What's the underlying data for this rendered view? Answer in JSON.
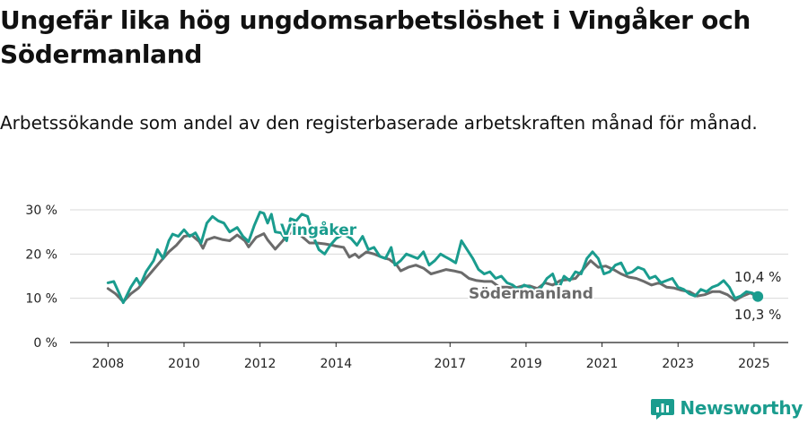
{
  "title": "Ungefär lika hög ungdomsarbetslöshet i Vingåker och Södermanland",
  "subtitle": "Arbetssökande som andel av den registerbaserade arbetskraften månad för månad.",
  "brand": {
    "name": "Newsworthy",
    "icon": "newsworthy-logo-icon",
    "color": "#1a9c8e"
  },
  "chart_data": {
    "type": "line",
    "xlim": [
      2007.0,
      2025.9
    ],
    "ylim": [
      0,
      30
    ],
    "y_ticks": [
      {
        "value": 0,
        "label": "0 %"
      },
      {
        "value": 10,
        "label": "10 %"
      },
      {
        "value": 20,
        "label": "20 %"
      },
      {
        "value": 30,
        "label": "30 %"
      }
    ],
    "x_ticks": [
      {
        "value": 2008,
        "label": "2008"
      },
      {
        "value": 2010,
        "label": "2010"
      },
      {
        "value": 2012,
        "label": "2012"
      },
      {
        "value": 2014,
        "label": "2014"
      },
      {
        "value": 2017,
        "label": "2017"
      },
      {
        "value": 2019,
        "label": "2019"
      },
      {
        "value": 2021,
        "label": "2021"
      },
      {
        "value": 2023,
        "label": "2023"
      },
      {
        "value": 2025,
        "label": "2025"
      }
    ],
    "grid": "horizontal",
    "series": [
      {
        "name": "Södermanland",
        "color": "#6b6b6b",
        "end_label": "10,3 %",
        "points": [
          [
            2008.0,
            12.2
          ],
          [
            2008.2,
            11.0
          ],
          [
            2008.4,
            9.2
          ],
          [
            2008.6,
            11.0
          ],
          [
            2008.8,
            12.3
          ],
          [
            2009.0,
            14.5
          ],
          [
            2009.2,
            16.5
          ],
          [
            2009.4,
            18.5
          ],
          [
            2009.6,
            20.5
          ],
          [
            2009.8,
            22.0
          ],
          [
            2010.0,
            24.0
          ],
          [
            2010.2,
            24.3
          ],
          [
            2010.4,
            22.8
          ],
          [
            2010.5,
            21.3
          ],
          [
            2010.6,
            23.2
          ],
          [
            2010.8,
            23.8
          ],
          [
            2011.0,
            23.3
          ],
          [
            2011.2,
            23.0
          ],
          [
            2011.4,
            24.3
          ],
          [
            2011.6,
            23.0
          ],
          [
            2011.7,
            21.6
          ],
          [
            2011.9,
            23.8
          ],
          [
            2012.1,
            24.6
          ],
          [
            2012.2,
            23.2
          ],
          [
            2012.4,
            21.1
          ],
          [
            2012.6,
            23.0
          ],
          [
            2012.7,
            24.3
          ],
          [
            2012.9,
            25.2
          ],
          [
            2013.1,
            24.0
          ],
          [
            2013.3,
            22.5
          ],
          [
            2013.5,
            22.5
          ],
          [
            2013.7,
            22.3
          ],
          [
            2013.9,
            22.0
          ],
          [
            2014.0,
            21.8
          ],
          [
            2014.2,
            21.5
          ],
          [
            2014.35,
            19.3
          ],
          [
            2014.5,
            20.0
          ],
          [
            2014.6,
            19.2
          ],
          [
            2014.8,
            20.5
          ],
          [
            2015.0,
            20.0
          ],
          [
            2015.2,
            19.3
          ],
          [
            2015.4,
            18.8
          ],
          [
            2015.6,
            17.5
          ],
          [
            2015.7,
            16.2
          ],
          [
            2015.9,
            17.0
          ],
          [
            2016.1,
            17.5
          ],
          [
            2016.3,
            16.8
          ],
          [
            2016.5,
            15.5
          ],
          [
            2016.7,
            16.0
          ],
          [
            2016.9,
            16.5
          ],
          [
            2017.1,
            16.2
          ],
          [
            2017.3,
            15.8
          ],
          [
            2017.5,
            14.5
          ],
          [
            2017.7,
            14.0
          ],
          [
            2017.9,
            13.8
          ],
          [
            2018.1,
            13.8
          ],
          [
            2018.3,
            12.5
          ],
          [
            2018.5,
            12.5
          ],
          [
            2018.7,
            12.3
          ],
          [
            2018.9,
            12.8
          ],
          [
            2019.1,
            12.8
          ],
          [
            2019.3,
            12.2
          ],
          [
            2019.5,
            13.5
          ],
          [
            2019.7,
            13.0
          ],
          [
            2019.9,
            14.0
          ],
          [
            2020.1,
            14.2
          ],
          [
            2020.3,
            14.5
          ],
          [
            2020.5,
            16.5
          ],
          [
            2020.7,
            18.5
          ],
          [
            2020.9,
            17.0
          ],
          [
            2021.1,
            17.3
          ],
          [
            2021.3,
            16.5
          ],
          [
            2021.5,
            15.5
          ],
          [
            2021.7,
            14.8
          ],
          [
            2021.9,
            14.5
          ],
          [
            2022.1,
            13.8
          ],
          [
            2022.3,
            13.0
          ],
          [
            2022.5,
            13.5
          ],
          [
            2022.7,
            12.5
          ],
          [
            2022.9,
            12.3
          ],
          [
            2023.1,
            11.8
          ],
          [
            2023.3,
            11.5
          ],
          [
            2023.5,
            10.5
          ],
          [
            2023.7,
            10.8
          ],
          [
            2023.9,
            11.5
          ],
          [
            2024.1,
            11.5
          ],
          [
            2024.3,
            10.8
          ],
          [
            2024.5,
            9.5
          ],
          [
            2024.7,
            10.5
          ],
          [
            2024.9,
            11.2
          ],
          [
            2025.1,
            10.3
          ]
        ]
      },
      {
        "name": "Vingåker",
        "color": "#1a9c8e",
        "end_label": "10,4 %",
        "points": [
          [
            2008.0,
            13.5
          ],
          [
            2008.15,
            13.8
          ],
          [
            2008.3,
            11.0
          ],
          [
            2008.4,
            9.0
          ],
          [
            2008.6,
            12.5
          ],
          [
            2008.75,
            14.5
          ],
          [
            2008.85,
            13.0
          ],
          [
            2009.0,
            16.0
          ],
          [
            2009.2,
            18.5
          ],
          [
            2009.3,
            21.0
          ],
          [
            2009.45,
            19.0
          ],
          [
            2009.6,
            23.0
          ],
          [
            2009.7,
            24.5
          ],
          [
            2009.85,
            24.0
          ],
          [
            2010.0,
            25.5
          ],
          [
            2010.15,
            24.0
          ],
          [
            2010.3,
            24.8
          ],
          [
            2010.45,
            22.5
          ],
          [
            2010.6,
            27.0
          ],
          [
            2010.75,
            28.5
          ],
          [
            2010.9,
            27.5
          ],
          [
            2011.05,
            27.0
          ],
          [
            2011.2,
            25.0
          ],
          [
            2011.4,
            26.0
          ],
          [
            2011.55,
            24.0
          ],
          [
            2011.7,
            22.8
          ],
          [
            2011.85,
            26.5
          ],
          [
            2012.0,
            29.5
          ],
          [
            2012.1,
            29.2
          ],
          [
            2012.2,
            27.0
          ],
          [
            2012.3,
            29.0
          ],
          [
            2012.4,
            25.0
          ],
          [
            2012.55,
            24.8
          ],
          [
            2012.7,
            23.0
          ],
          [
            2012.8,
            28.0
          ],
          [
            2012.95,
            27.5
          ],
          [
            2013.1,
            29.0
          ],
          [
            2013.25,
            28.5
          ],
          [
            2013.4,
            24.0
          ],
          [
            2013.55,
            21.0
          ],
          [
            2013.7,
            20.0
          ],
          [
            2013.85,
            22.0
          ],
          [
            2014.0,
            23.5
          ],
          [
            2014.2,
            24.5
          ],
          [
            2014.4,
            23.5
          ],
          [
            2014.55,
            22.0
          ],
          [
            2014.7,
            24.0
          ],
          [
            2014.85,
            21.0
          ],
          [
            2015.0,
            21.5
          ],
          [
            2015.15,
            19.5
          ],
          [
            2015.3,
            19.0
          ],
          [
            2015.45,
            21.5
          ],
          [
            2015.55,
            17.5
          ],
          [
            2015.7,
            18.5
          ],
          [
            2015.85,
            20.0
          ],
          [
            2016.0,
            19.5
          ],
          [
            2016.15,
            19.0
          ],
          [
            2016.3,
            20.5
          ],
          [
            2016.45,
            17.5
          ],
          [
            2016.6,
            18.5
          ],
          [
            2016.75,
            20.0
          ],
          [
            2016.85,
            19.5
          ],
          [
            2017.0,
            18.8
          ],
          [
            2017.15,
            18.0
          ],
          [
            2017.3,
            23.0
          ],
          [
            2017.45,
            21.0
          ],
          [
            2017.6,
            19.0
          ],
          [
            2017.75,
            16.5
          ],
          [
            2017.9,
            15.5
          ],
          [
            2018.05,
            16.0
          ],
          [
            2018.2,
            14.5
          ],
          [
            2018.35,
            15.0
          ],
          [
            2018.5,
            13.5
          ],
          [
            2018.65,
            13.0
          ],
          [
            2018.8,
            12.0
          ],
          [
            2018.95,
            13.0
          ],
          [
            2019.1,
            12.5
          ],
          [
            2019.25,
            11.5
          ],
          [
            2019.4,
            12.5
          ],
          [
            2019.55,
            14.5
          ],
          [
            2019.7,
            15.5
          ],
          [
            2019.85,
            12.0
          ],
          [
            2020.0,
            15.0
          ],
          [
            2020.15,
            14.0
          ],
          [
            2020.3,
            16.0
          ],
          [
            2020.45,
            15.5
          ],
          [
            2020.6,
            19.0
          ],
          [
            2020.75,
            20.5
          ],
          [
            2020.9,
            19.0
          ],
          [
            2021.05,
            15.5
          ],
          [
            2021.2,
            16.0
          ],
          [
            2021.35,
            17.5
          ],
          [
            2021.5,
            18.0
          ],
          [
            2021.65,
            15.5
          ],
          [
            2021.8,
            16.0
          ],
          [
            2021.95,
            17.0
          ],
          [
            2022.1,
            16.5
          ],
          [
            2022.25,
            14.5
          ],
          [
            2022.4,
            15.0
          ],
          [
            2022.55,
            13.5
          ],
          [
            2022.7,
            14.0
          ],
          [
            2022.85,
            14.5
          ],
          [
            2023.0,
            12.5
          ],
          [
            2023.15,
            12.0
          ],
          [
            2023.3,
            11.0
          ],
          [
            2023.45,
            10.5
          ],
          [
            2023.6,
            12.0
          ],
          [
            2023.75,
            11.5
          ],
          [
            2023.9,
            12.5
          ],
          [
            2024.05,
            13.0
          ],
          [
            2024.2,
            14.0
          ],
          [
            2024.35,
            12.5
          ],
          [
            2024.5,
            10.0
          ],
          [
            2024.65,
            10.5
          ],
          [
            2024.8,
            11.5
          ],
          [
            2024.95,
            11.2
          ],
          [
            2025.1,
            10.4
          ]
        ]
      }
    ]
  }
}
